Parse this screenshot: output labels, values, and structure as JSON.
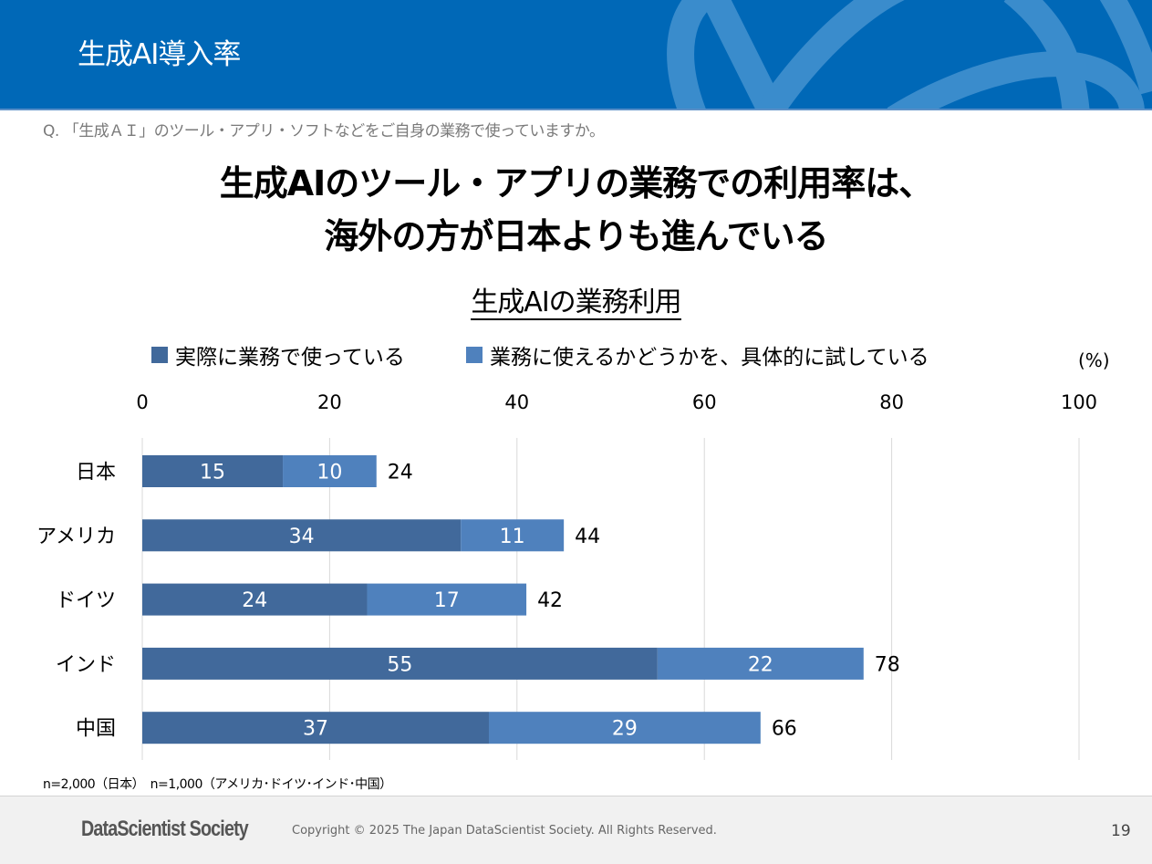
{
  "header": {
    "title": "生成AI導入率",
    "colors": {
      "background": "#0068b7",
      "decoration": "#3a8ccc"
    }
  },
  "question": "Q. 「生成ＡＩ」のツール・アプリ・ソフトなどをご自身の業務で使っていますか。",
  "headline": {
    "line1": "生成AIのツール・アプリの業務での利用率は、",
    "line2": "海外の方が日本よりも進んでいる"
  },
  "chart_data": {
    "type": "bar",
    "orientation": "horizontal",
    "stacked": true,
    "title": "生成AIの業務利用",
    "unit_label": "(%)",
    "xlabel": "",
    "ylabel": "",
    "xlim": [
      0,
      100
    ],
    "x_ticks": [
      0,
      20,
      40,
      60,
      80,
      100
    ],
    "grid": true,
    "legend_position": "top",
    "categories": [
      "日本",
      "アメリカ",
      "ドイツ",
      "インド",
      "中国"
    ],
    "series": [
      {
        "name": "実際に業務で使っている",
        "color": "#41699b",
        "values": [
          15,
          34,
          24,
          55,
          37
        ]
      },
      {
        "name": "業務に使えるかどうかを、具体的に試している",
        "color": "#4f81bd",
        "values": [
          10,
          11,
          17,
          22,
          29
        ]
      }
    ],
    "totals": [
      24,
      44,
      42,
      78,
      66
    ]
  },
  "note": "n=2,000（日本）　n=1,000（アメリカ･ドイツ･インド･中国）",
  "footer": {
    "brand": "DataScientist Society",
    "copyright": "Copyright © 2025 The Japan DataScientist Society. All Rights Reserved.",
    "page_number": "19"
  }
}
